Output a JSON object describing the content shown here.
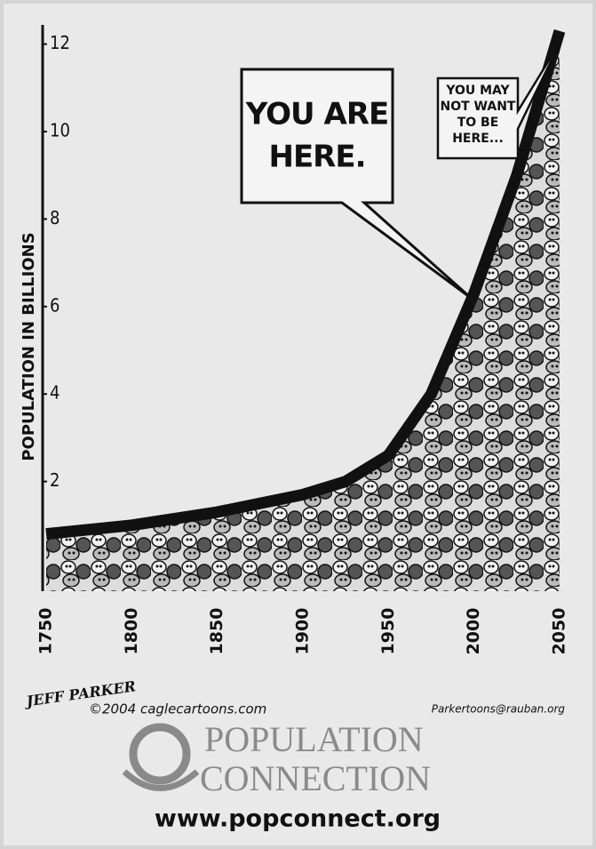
{
  "chart_data": {
    "type": "area",
    "ylabel": "POPULATION IN BILLIONS",
    "x": [
      1750,
      1800,
      1850,
      1900,
      1925,
      1950,
      1975,
      2000,
      2025,
      2050
    ],
    "values": [
      0.8,
      1.0,
      1.3,
      1.7,
      2.0,
      2.6,
      4.0,
      6.3,
      9.0,
      12.3
    ],
    "color": "#111111",
    "xlim": [
      1750,
      2050
    ],
    "ylim": [
      0,
      12.5
    ],
    "xticks": [
      1750,
      1800,
      1850,
      1900,
      1950,
      2000,
      2050
    ],
    "yticks": [
      2,
      4,
      6,
      8,
      10,
      12
    ],
    "annotations": [
      {
        "lines": [
          "YOU ARE",
          "HERE."
        ]
      },
      {
        "lines": [
          "YOU MAY",
          "NOT WANT",
          "TO BE",
          "HERE..."
        ]
      }
    ]
  },
  "credits": {
    "signature": "JEFF PARKER",
    "copyright": "©2004 caglecartoons.com",
    "email": "Parkertoons@rauban.org"
  },
  "logo": {
    "lines": [
      "POPULATION",
      "CONNECTION"
    ],
    "url": "www.popconnect.org"
  }
}
